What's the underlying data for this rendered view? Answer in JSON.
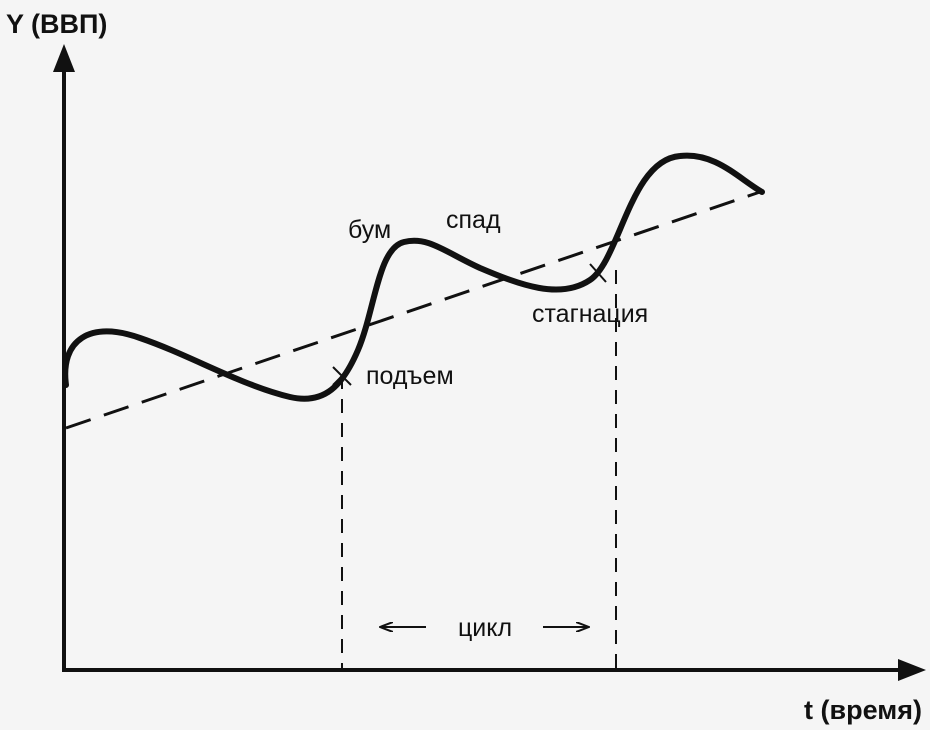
{
  "axes": {
    "y_label": "Y (ВВП)",
    "x_label": "t (время)"
  },
  "phases": {
    "boom": "бум",
    "decline": "спад",
    "stagnation": "стагнация",
    "rise": "подъем"
  },
  "cycle_label": "цикл",
  "colors": {
    "background": "#f5f5f5",
    "ink": "#111111"
  }
}
